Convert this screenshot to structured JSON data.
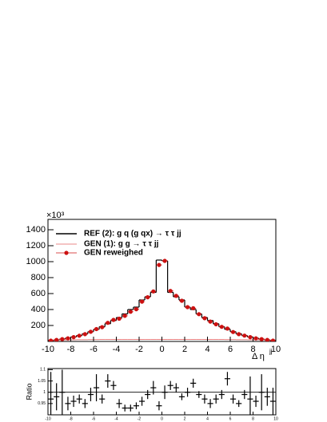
{
  "chart_data": [
    {
      "type": "histogram",
      "y_multiplier": "×10³",
      "xlabel": "Δ η",
      "xlabel_sup": "jj",
      "bins": [
        -10,
        -9.5,
        -9,
        -8.5,
        -8,
        -7.5,
        -7,
        -6.5,
        -6,
        -5.5,
        -5,
        -4.5,
        -4,
        -3.5,
        -3,
        -2.5,
        -2,
        -1.5,
        -1,
        -0.5,
        0,
        0.5,
        1,
        1.5,
        2,
        2.5,
        3,
        3.5,
        4,
        4.5,
        5,
        5.5,
        6,
        6.5,
        7,
        7.5,
        8,
        8.5,
        9,
        9.5,
        10
      ],
      "xlim": [
        -10,
        10
      ],
      "xticks": [
        -10,
        -8,
        -6,
        -4,
        -2,
        0,
        2,
        4,
        6,
        8,
        10
      ],
      "ylim": [
        0,
        1530
      ],
      "yticks": [
        200,
        400,
        600,
        800,
        1000,
        1200,
        1400
      ],
      "series": [
        {
          "name": "REF (2): g q (g qx) → τ τ jj",
          "color": "#000000",
          "style": "step",
          "values": [
            10,
            19,
            29,
            41,
            56,
            74,
            96,
            122,
            152,
            185,
            222,
            262,
            300,
            345,
            400,
            430,
            520,
            560,
            615,
            1020,
            1010,
            615,
            560,
            520,
            430,
            400,
            345,
            300,
            262,
            222,
            185,
            152,
            122,
            96,
            74,
            56,
            41,
            29,
            19,
            10
          ]
        },
        {
          "name": "GEN (1): g g → τ τ jj",
          "color": "#e06060",
          "style": "line",
          "values": [
            18,
            19,
            20,
            21,
            21,
            22,
            22,
            23,
            23,
            24,
            24,
            24,
            25,
            25,
            25,
            25,
            26,
            26,
            26,
            26,
            26,
            26,
            26,
            26,
            25,
            25,
            25,
            25,
            24,
            24,
            24,
            23,
            23,
            22,
            22,
            21,
            21,
            20,
            19,
            18
          ]
        },
        {
          "name": "GEN reweighed",
          "color": "#cc1111",
          "style": "points",
          "values": [
            10,
            19,
            29,
            39,
            54,
            72,
            91,
            121,
            155,
            179,
            233,
            270,
            285,
            321,
            372,
            404,
            499,
            554,
            627,
            959,
            1010,
            633,
            571,
            510,
            430,
            416,
            342,
            291,
            249,
            215,
            183,
            161,
            118,
            91,
            73,
            54,
            39,
            29,
            19,
            10
          ]
        }
      ]
    },
    {
      "type": "ratio",
      "ylabel": "Ratio",
      "xlim": [
        -10,
        10
      ],
      "ylim": [
        0.9,
        1.105
      ],
      "yticks": [
        0.95,
        1,
        1.05,
        1.1
      ],
      "reference": 1,
      "values": [
        0.97,
        0.98,
        1.0,
        0.95,
        0.96,
        0.97,
        0.95,
        0.99,
        1.02,
        0.97,
        1.05,
        1.03,
        0.95,
        0.93,
        0.93,
        0.94,
        0.96,
        0.99,
        1.02,
        0.94,
        1.0,
        1.03,
        1.02,
        0.98,
        1.0,
        1.04,
        0.99,
        0.97,
        0.95,
        0.97,
        0.99,
        1.06,
        0.97,
        0.95,
        0.99,
        0.97,
        0.96,
        1.0,
        0.98,
        0.96
      ],
      "errors": [
        0.12,
        0.06,
        0.1,
        0.03,
        0.025,
        0.02,
        0.02,
        0.03,
        0.06,
        0.02,
        0.03,
        0.02,
        0.02,
        0.015,
        0.015,
        0.015,
        0.02,
        0.02,
        0.03,
        0.02,
        0.03,
        0.02,
        0.02,
        0.015,
        0.02,
        0.02,
        0.015,
        0.02,
        0.02,
        0.02,
        0.02,
        0.03,
        0.02,
        0.015,
        0.02,
        0.1,
        0.025,
        0.08,
        0.04,
        0.06
      ]
    }
  ]
}
